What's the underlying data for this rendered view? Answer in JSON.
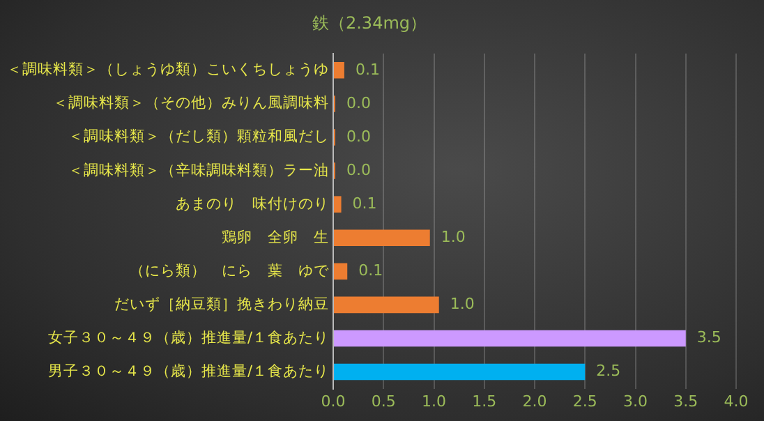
{
  "chart_data": {
    "type": "bar",
    "orientation": "horizontal",
    "title": "鉄（2.34mg）",
    "categories": [
      "＜調味料類＞（しょうゆ類）こいくちしょうゆ",
      "＜調味料類＞（その他）みりん風調味料",
      "＜調味料類＞（だし類）顆粒和風だし",
      "＜調味料類＞（辛味調味料類）ラー油",
      "あまのり　味付けのり",
      "鶏卵　全卵　生",
      "（にら類）　にら　葉　ゆで",
      "だいず［納豆類］挽きわり納豆",
      "女子３０～４９（歳）推進量/１食あたり",
      "男子３０～４９（歳）推進量/１食あたり"
    ],
    "values": [
      0.11,
      0.02,
      0.02,
      0.02,
      0.08,
      0.96,
      0.14,
      1.05,
      3.5,
      2.5
    ],
    "value_labels": [
      "0.1",
      "0.0",
      "0.0",
      "0.0",
      "0.1",
      "1.0",
      "0.1",
      "1.0",
      "3.5",
      "2.5"
    ],
    "colors": [
      "#ed7d31",
      "#ed7d31",
      "#ed7d31",
      "#ed7d31",
      "#ed7d31",
      "#ed7d31",
      "#ed7d31",
      "#ed7d31",
      "#cc99ff",
      "#00b0f0"
    ],
    "xlim": [
      0,
      4
    ],
    "xticks": [
      {
        "value": 0,
        "label": "0.0"
      },
      {
        "value": 0.5,
        "label": "0.5"
      },
      {
        "value": 1,
        "label": "1.0"
      },
      {
        "value": 1.5,
        "label": "1.5"
      },
      {
        "value": 2,
        "label": "2.0"
      },
      {
        "value": 2.5,
        "label": "2.5"
      },
      {
        "value": 3,
        "label": "3.0"
      },
      {
        "value": 3.5,
        "label": "3.5"
      },
      {
        "value": 4,
        "label": "4.0"
      }
    ],
    "grid": "x",
    "legend": false
  }
}
